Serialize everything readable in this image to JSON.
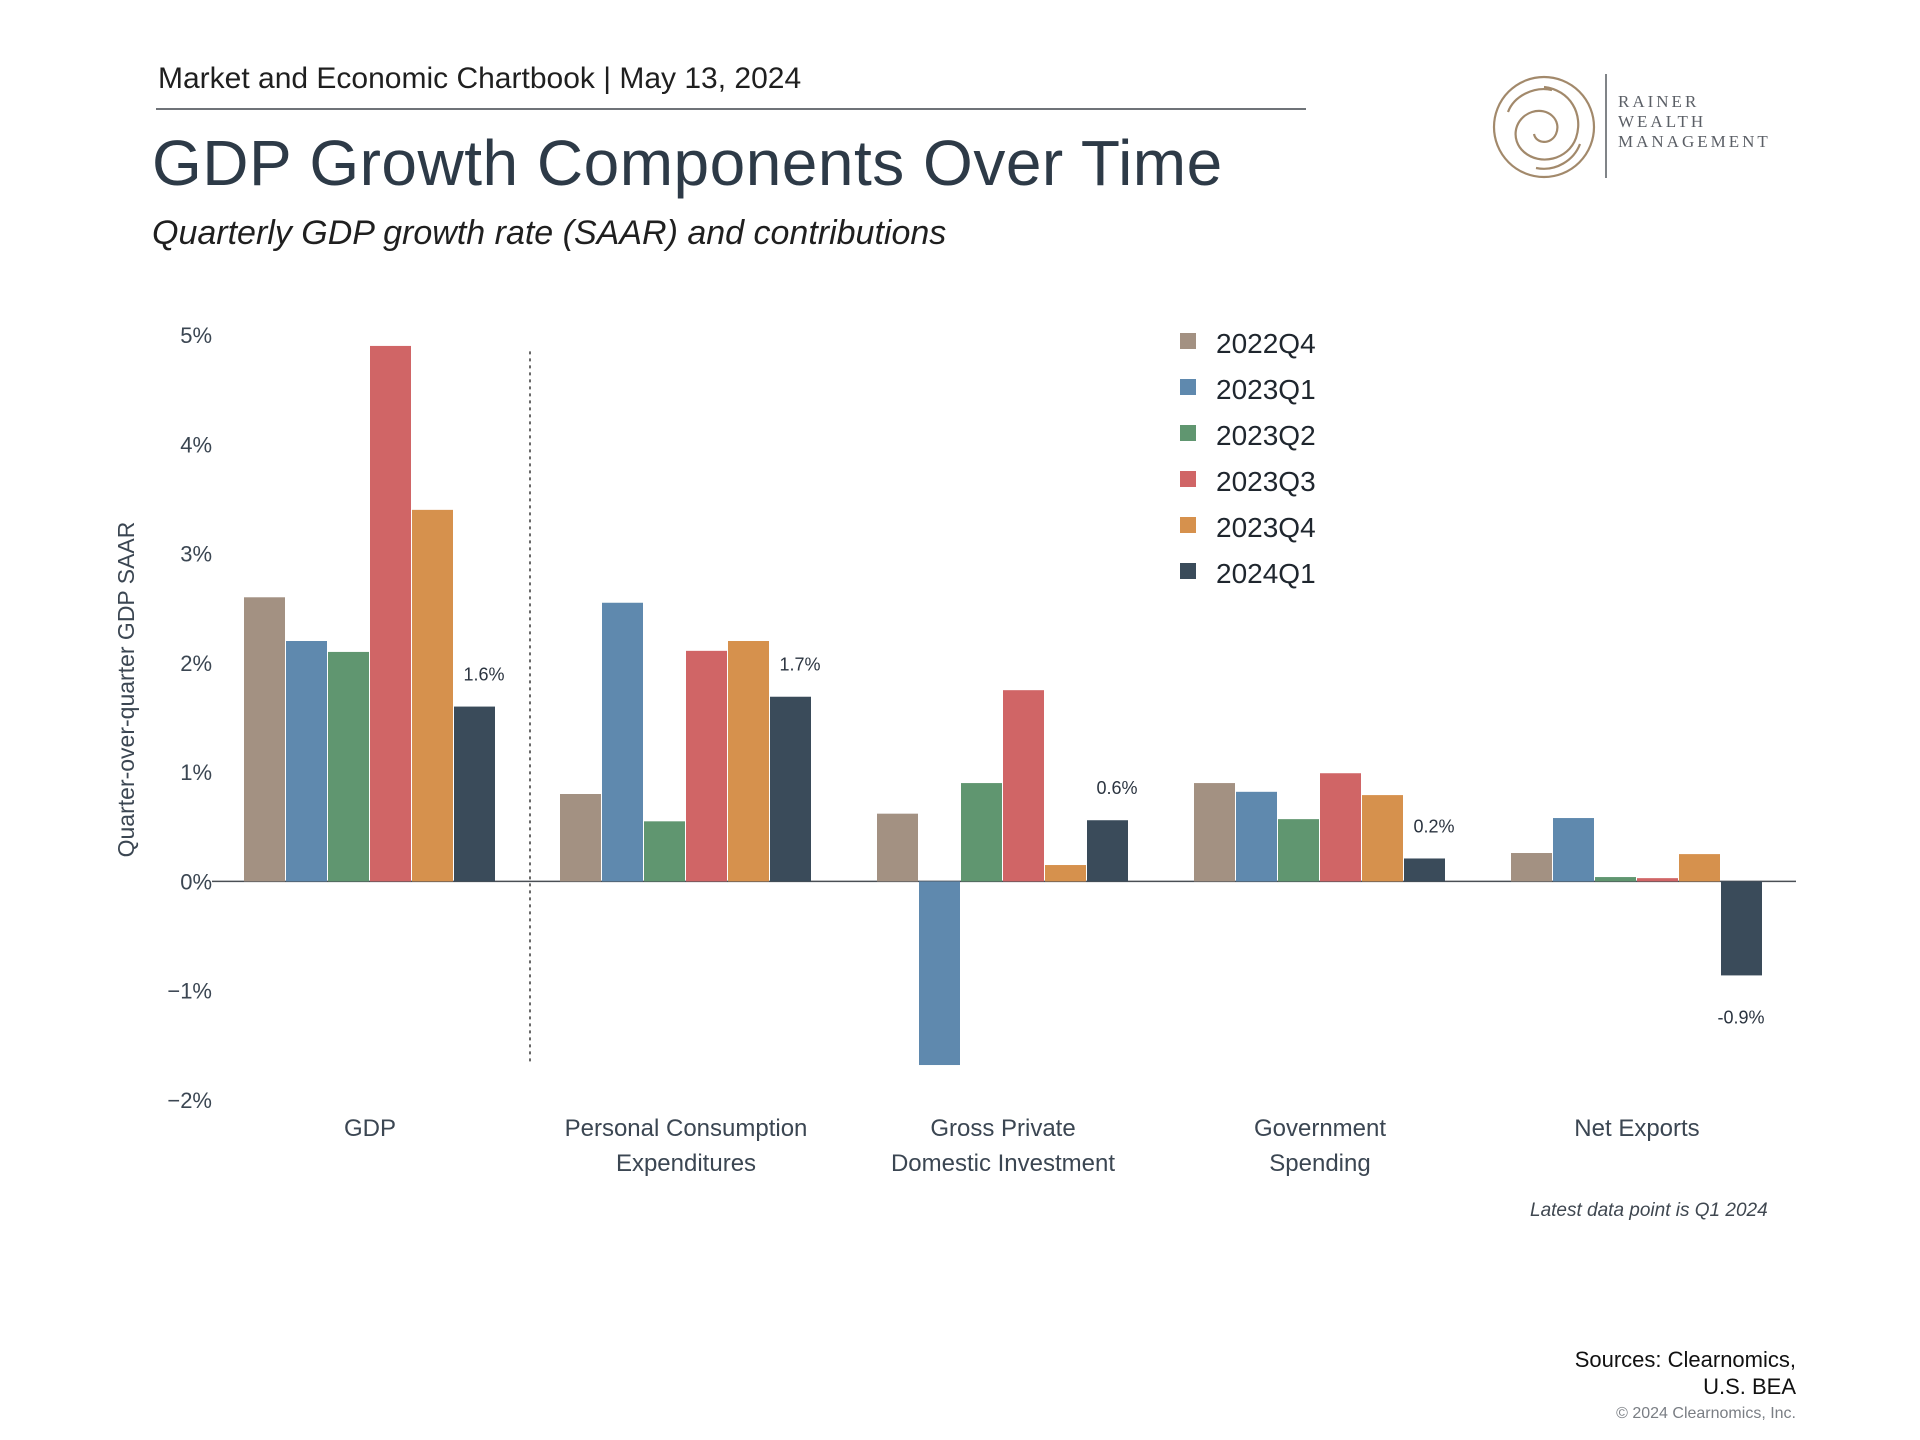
{
  "header": {
    "chartbook": "Market and Economic Chartbook | May 13, 2024",
    "title": "GDP Growth Components Over Time",
    "subtitle": "Quarterly GDP growth rate (SAAR) and contributions"
  },
  "logo": {
    "lines": [
      "RAINER",
      "WEALTH",
      "MANAGEMENT"
    ],
    "color": "#a2896b"
  },
  "chart_data": {
    "type": "bar",
    "ylabel": "Quarter-over-quarter GDP SAAR",
    "ylim": [
      -2,
      5
    ],
    "yticks": [
      5,
      4,
      3,
      2,
      1,
      0,
      -1,
      -2
    ],
    "ytick_labels": [
      "5%",
      "4%",
      "3%",
      "2%",
      "1%",
      "0%",
      "−1%",
      "−2%"
    ],
    "legend_position": "top-right",
    "categories": [
      [
        "GDP"
      ],
      [
        "Personal Consumption",
        "Expenditures"
      ],
      [
        "Gross Private",
        "Domestic Investment"
      ],
      [
        "Government",
        "Spending"
      ],
      [
        "Net Exports"
      ]
    ],
    "series": [
      {
        "name": "2022Q4",
        "color": "#a39182",
        "values": [
          2.6,
          0.8,
          0.62,
          0.9,
          0.26
        ]
      },
      {
        "name": "2023Q1",
        "color": "#5f89ae",
        "values": [
          2.2,
          2.55,
          -1.68,
          0.82,
          0.58
        ]
      },
      {
        "name": "2023Q2",
        "color": "#609670",
        "values": [
          2.1,
          0.55,
          0.9,
          0.57,
          0.04
        ]
      },
      {
        "name": "2023Q3",
        "color": "#d06566",
        "values": [
          4.9,
          2.11,
          1.75,
          0.99,
          0.03
        ]
      },
      {
        "name": "2023Q4",
        "color": "#d6914d",
        "values": [
          3.4,
          2.2,
          0.15,
          0.79,
          0.25
        ]
      },
      {
        "name": "2024Q1",
        "color": "#3a4b5a",
        "values": [
          1.6,
          1.69,
          0.56,
          0.21,
          -0.86
        ]
      }
    ],
    "data_labels": [
      "1.6%",
      "1.7%",
      "0.6%",
      "0.2%",
      "-0.9%"
    ],
    "separator_after_category": 0
  },
  "note": "Latest data point is Q1 2024",
  "footer": {
    "sources_line1": "Sources: Clearnomics,",
    "sources_line2": "U.S. BEA",
    "copyright": "© 2024 Clearnomics, Inc."
  }
}
